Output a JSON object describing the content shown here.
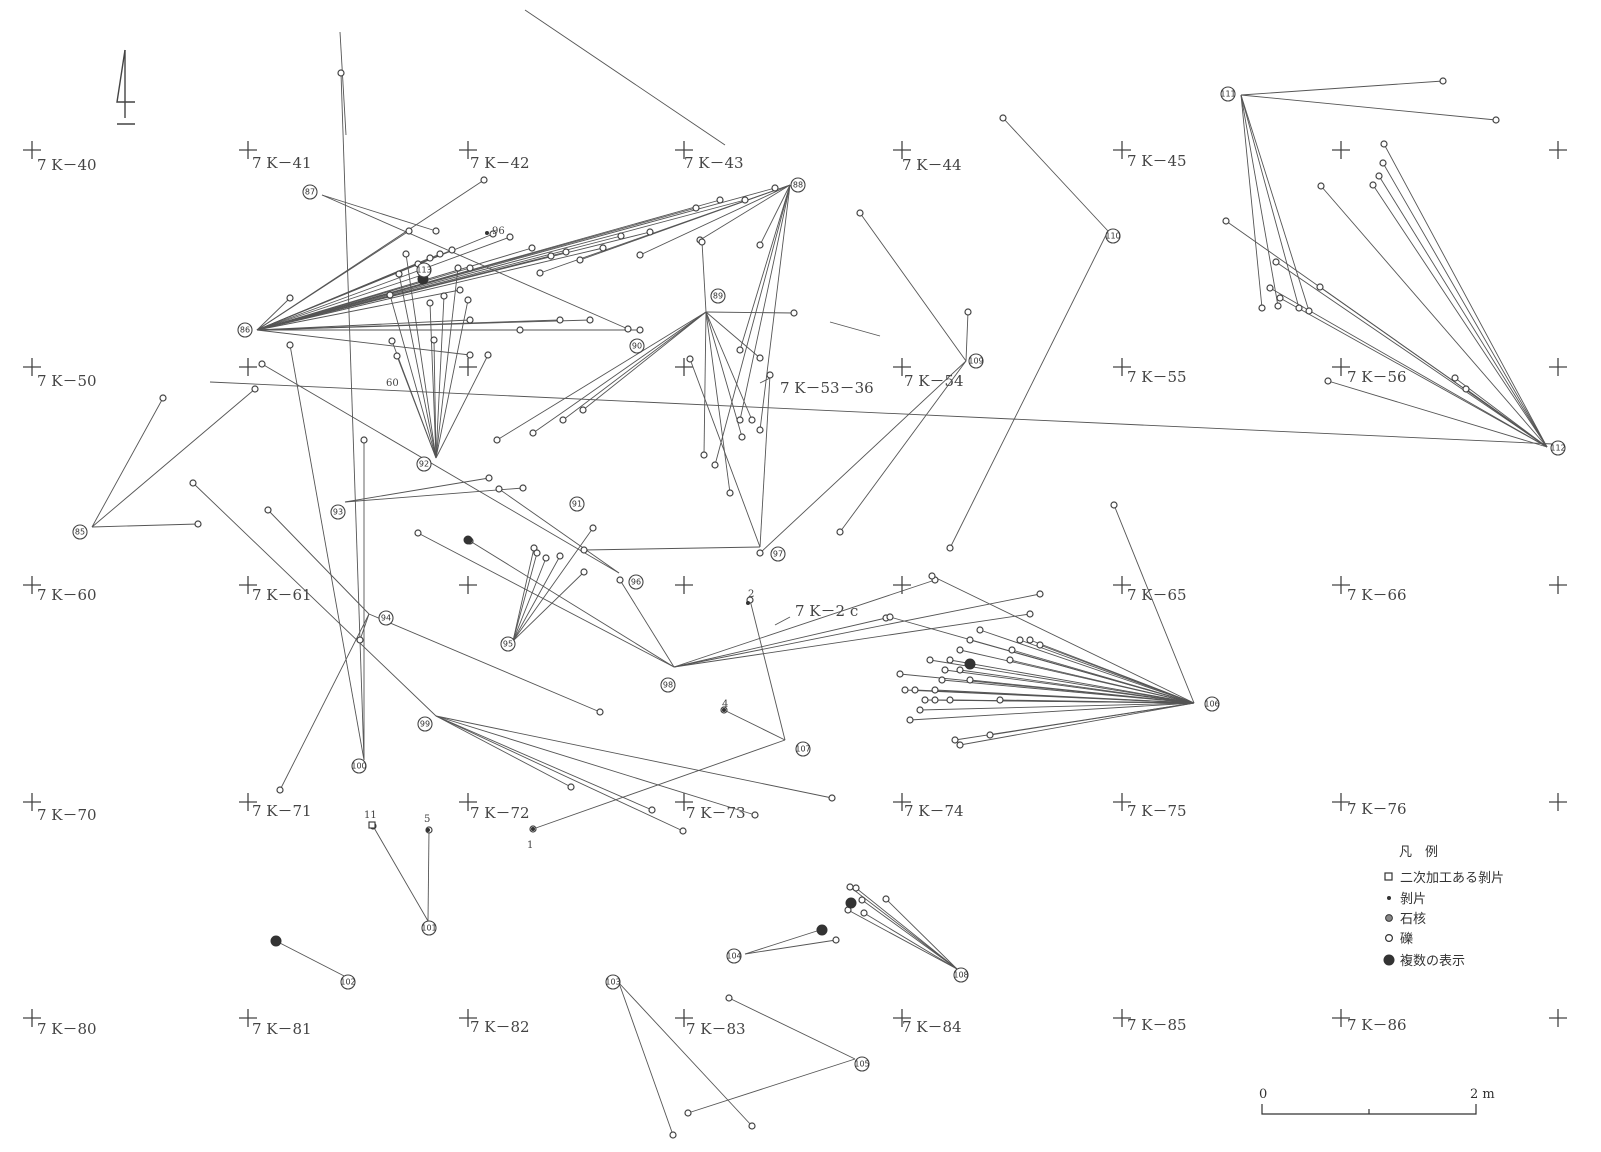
{
  "grid_labels": {
    "k40": "7 K－40",
    "k41": "7 K－41",
    "k42": "7 K－42",
    "k43": "7 K－43",
    "k44": "7 K－44",
    "k45": "7 K－45",
    "k50": "7 K－50",
    "k54": "7 K－54",
    "k55": "7 K－55",
    "k56": "7 K－56",
    "k60": "7 K－60",
    "k61": "7 K－61",
    "k65": "7 K－65",
    "k66": "7 K－66",
    "k70": "7 K－70",
    "k71": "7 K－71",
    "k72": "7 K－72",
    "k73": "7 K－73",
    "k74": "7 K－74",
    "k75": "7 K－75",
    "k76": "7 K－76",
    "k80": "7 K－80",
    "k81": "7 K－81",
    "k82": "7 K－82",
    "k83": "7 K－83",
    "k84": "7 K－84",
    "k85": "7 K－85",
    "k86": "7 K－86"
  },
  "annotations": {
    "k53_36": "7 K－53－36",
    "k2c": "7 K－2 c",
    "n60": "60",
    "n96": "96",
    "n1": "1",
    "n2": "2",
    "n4": "4",
    "n5": "5",
    "n11": "11"
  },
  "hubs": {
    "h85": "85",
    "h86": "86",
    "h87": "87",
    "h88": "88",
    "h89": "89",
    "h90": "90",
    "h91": "91",
    "h92": "92",
    "h93": "93",
    "h94": "94",
    "h95": "95",
    "h96": "96",
    "h97": "97",
    "h98": "98",
    "h99": "99",
    "h100": "100",
    "h101": "101",
    "h102": "102",
    "h103": "103",
    "h104": "104",
    "h105": "105",
    "h106": "106",
    "h107": "107",
    "h108": "108",
    "h109": "109",
    "h110": "110",
    "h111": "111",
    "h112": "112",
    "h113": "113"
  },
  "legend": {
    "title": "凡　例",
    "retouched_flake": "二次加工ある剝片",
    "flake": "剝片",
    "core": "石核",
    "pebble": "礫",
    "multiple": "複数の表示"
  },
  "scale": {
    "zero": "0",
    "end": "2 m"
  }
}
